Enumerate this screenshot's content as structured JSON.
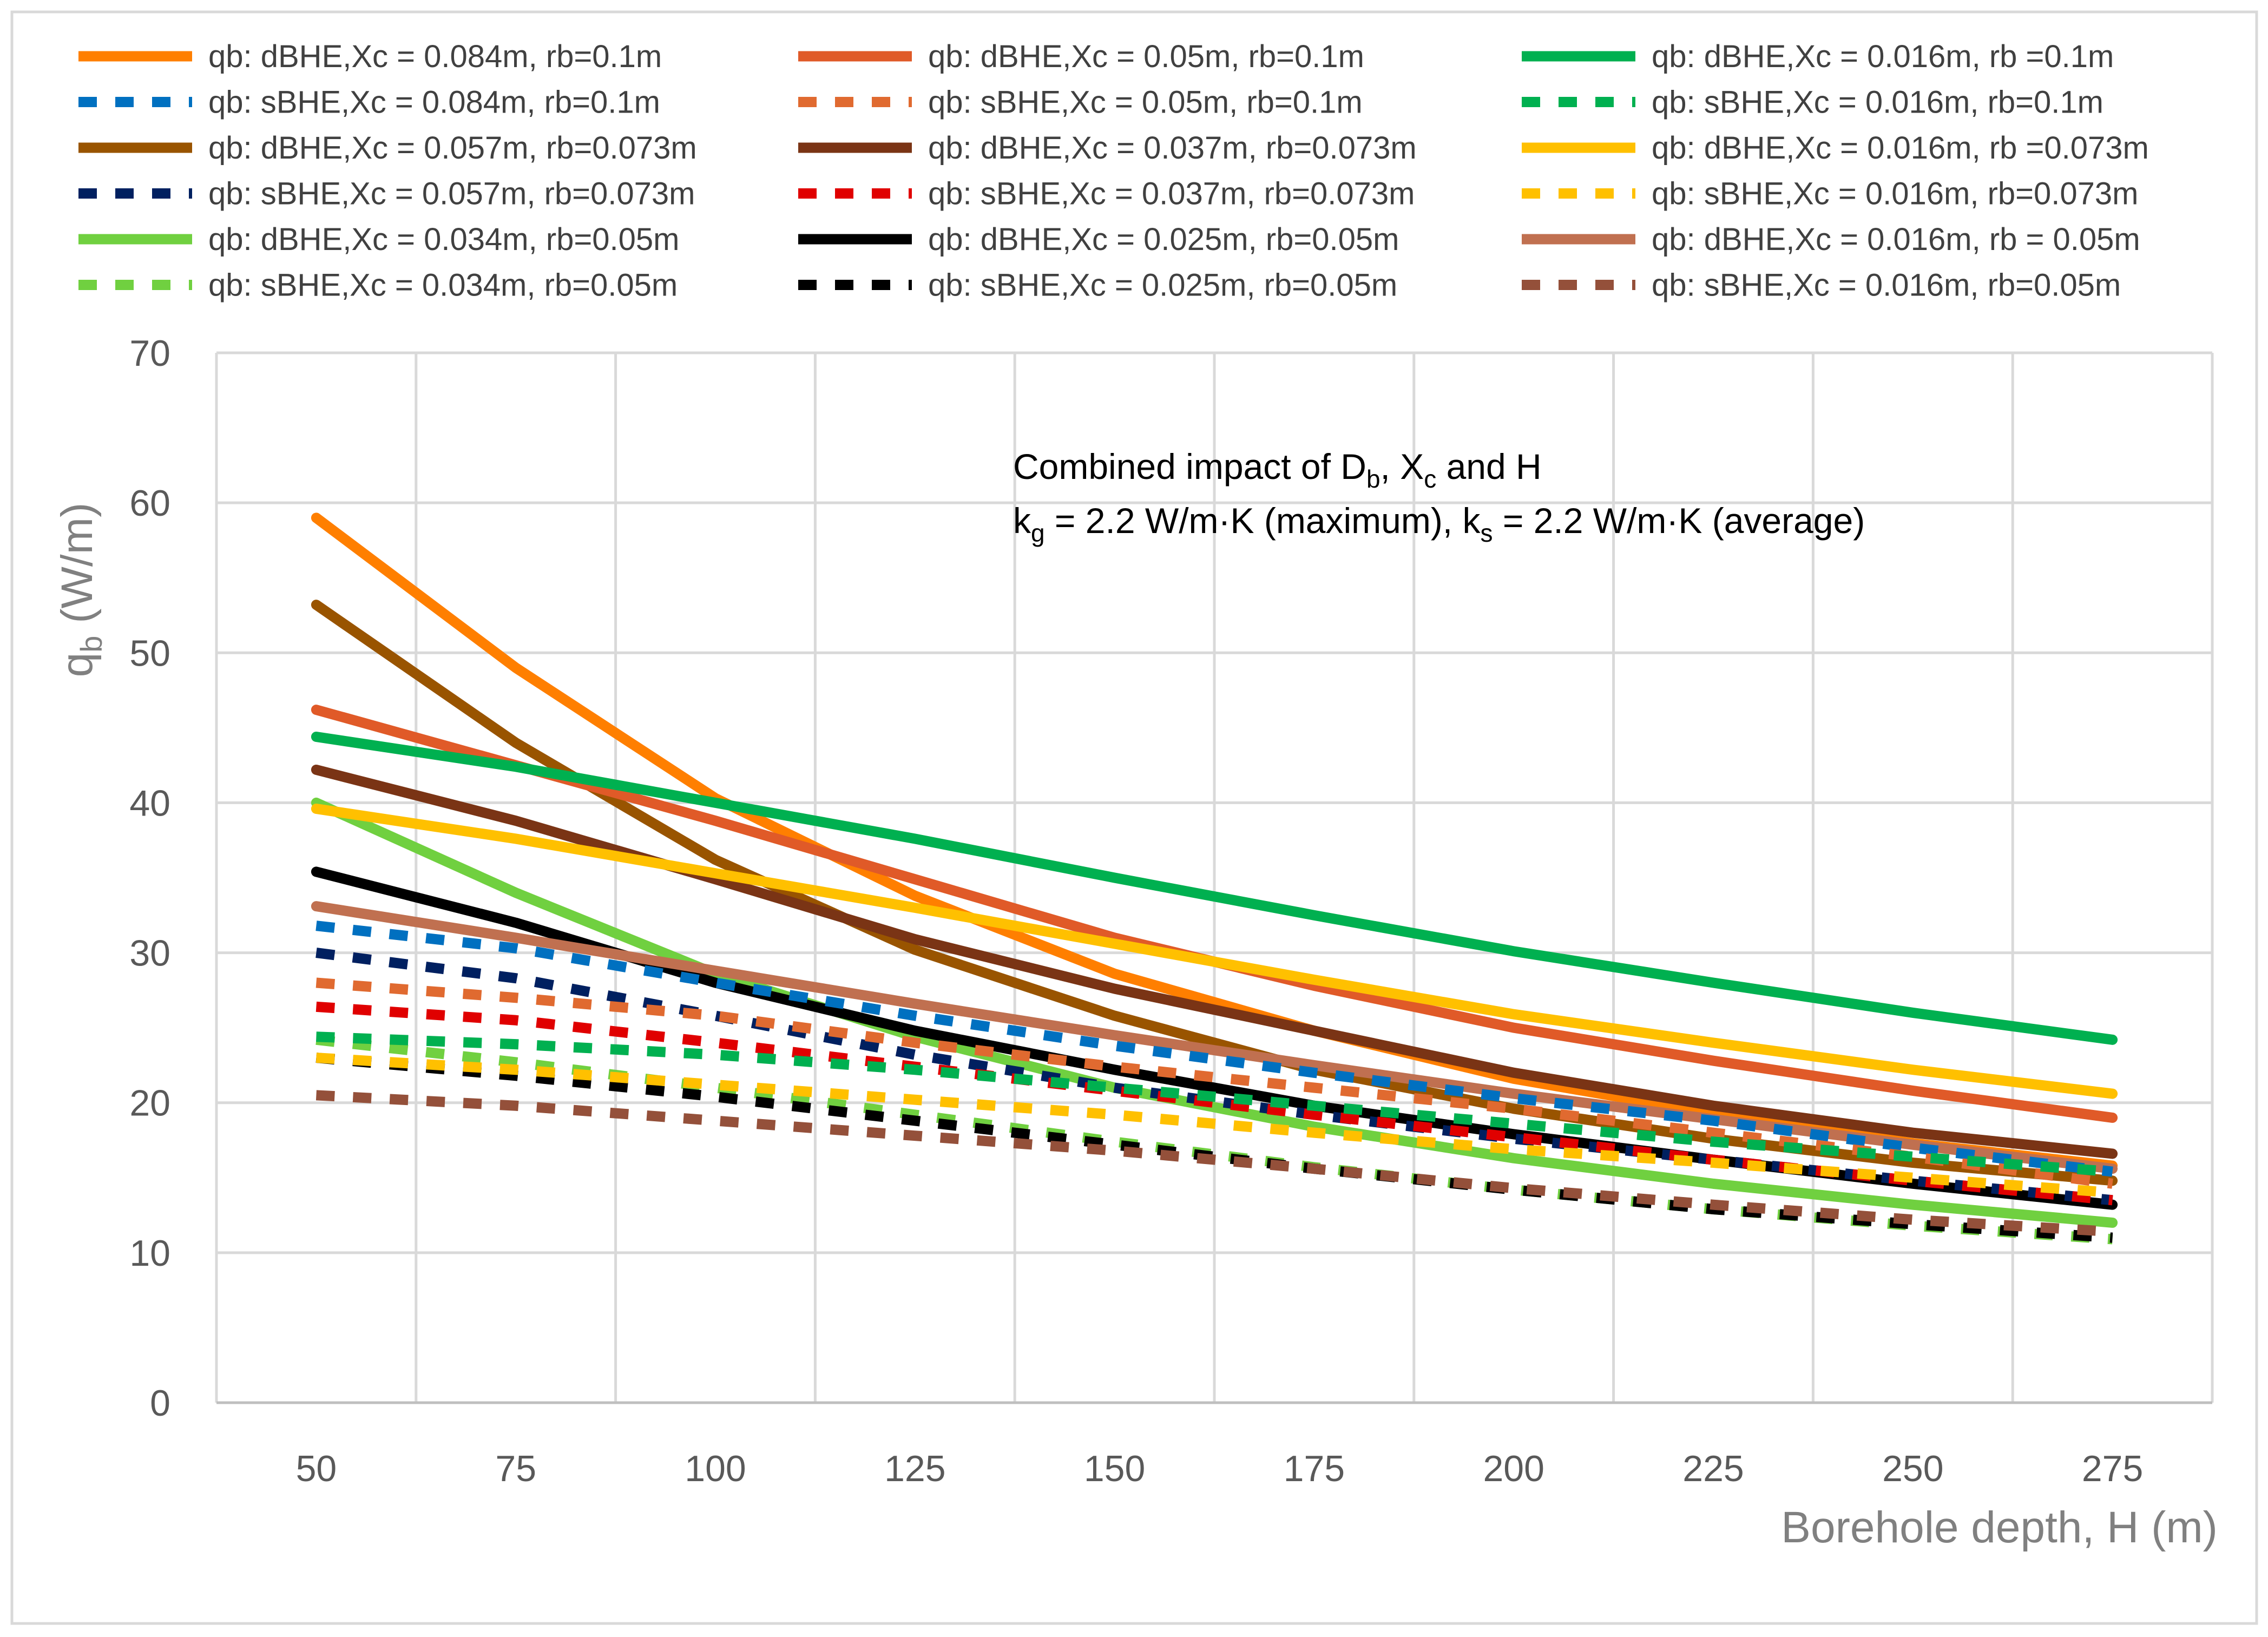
{
  "chart_data": {
    "type": "line",
    "title": "",
    "xlabel": "Borehole depth, H (m)",
    "ylabel_main": "q",
    "ylabel_sub": "b",
    "ylabel_unit": " (W/m)",
    "x": [
      50,
      75,
      100,
      125,
      150,
      175,
      200,
      225,
      250,
      275
    ],
    "xlim": [
      37.5,
      287.5
    ],
    "ylim": [
      0,
      70
    ],
    "yticks": [
      0,
      10,
      20,
      30,
      40,
      50,
      60,
      70
    ],
    "xticks": [
      50,
      75,
      100,
      125,
      150,
      175,
      200,
      225,
      250,
      275
    ],
    "grid": true,
    "legend_position": "top",
    "annotation": {
      "line1_a": "Combined impact of D",
      "line1_b": "b",
      "line1_c": ", X",
      "line1_d": "c",
      "line1_e": "  and H",
      "line2_a": "k",
      "line2_b": "g",
      "line2_c": " = 2.2 W/m·K (maximum), k",
      "line2_d": "s",
      "line2_e": " = 2.2 W/m·K (average)"
    },
    "series": [
      {
        "name": "qb: dBHE,Xc = 0.084m, rb=0.1m",
        "color": "#FF7F00",
        "dashed": false,
        "values": [
          59.0,
          49.0,
          40.3,
          33.8,
          28.6,
          24.8,
          21.6,
          19.3,
          17.3,
          15.8
        ]
      },
      {
        "name": "qb: sBHE,Xc = 0.084m, rb=0.1m",
        "color": "#0070C0",
        "dashed": true,
        "values": [
          31.8,
          30.3,
          28.0,
          25.8,
          23.8,
          22.0,
          20.3,
          18.8,
          17.0,
          15.4
        ]
      },
      {
        "name": "qb: dBHE,Xc = 0.057m, rb=0.073m",
        "color": "#995400",
        "dashed": false,
        "values": [
          53.2,
          44.0,
          36.2,
          30.2,
          25.8,
          22.2,
          19.6,
          17.6,
          16.0,
          14.8
        ]
      },
      {
        "name": "qb: sBHE,Xc = 0.057m, rb=0.073m",
        "color": "#002060",
        "dashed": true,
        "values": [
          30.0,
          28.3,
          25.8,
          23.2,
          21.0,
          19.2,
          17.6,
          16.2,
          14.8,
          13.5
        ]
      },
      {
        "name": "qb: dBHE,Xc = 0.034m, rb=0.05m",
        "color": "#70D040",
        "dashed": false,
        "values": [
          40.0,
          34.0,
          28.6,
          24.4,
          21.0,
          18.4,
          16.3,
          14.6,
          13.2,
          12.0
        ]
      },
      {
        "name": "qb: sBHE,Xc = 0.034m, rb=0.05m",
        "color": "#70D040",
        "dashed": true,
        "values": [
          24.2,
          22.7,
          21.0,
          19.2,
          17.4,
          15.7,
          14.2,
          12.9,
          11.8,
          10.9
        ]
      },
      {
        "name": "qb: dBHE,Xc = 0.05m, rb=0.1m",
        "color": "#E05A28",
        "dashed": false,
        "values": [
          46.2,
          42.5,
          38.8,
          34.9,
          31.0,
          27.8,
          25.0,
          22.8,
          20.8,
          19.0
        ]
      },
      {
        "name": "qb: sBHE,Xc = 0.05m, rb=0.1m",
        "color": "#E06A30",
        "dashed": true,
        "values": [
          28.0,
          27.0,
          25.8,
          24.0,
          22.4,
          21.0,
          19.6,
          18.0,
          16.4,
          14.6
        ]
      },
      {
        "name": "qb: dBHE,Xc = 0.037m, rb=0.073m",
        "color": "#7A3415",
        "dashed": false,
        "values": [
          42.2,
          38.8,
          34.9,
          30.9,
          27.6,
          24.8,
          22.0,
          19.8,
          18.0,
          16.6
        ]
      },
      {
        "name": "qb: sBHE,Xc = 0.037m, rb=0.073m",
        "color": "#E00000",
        "dashed": true,
        "values": [
          26.4,
          25.5,
          24.0,
          22.4,
          20.8,
          19.2,
          17.7,
          16.2,
          14.8,
          13.5
        ]
      },
      {
        "name": "qb: dBHE,Xc = 0.025m, rb=0.05m",
        "color": "#000000",
        "dashed": false,
        "values": [
          35.4,
          32.0,
          28.0,
          24.8,
          22.2,
          19.8,
          17.9,
          16.2,
          14.6,
          13.2
        ]
      },
      {
        "name": "qb: sBHE,Xc = 0.025m, rb=0.05m",
        "color": "#000000",
        "dashed": true,
        "values": [
          23.0,
          21.8,
          20.4,
          18.8,
          17.2,
          15.6,
          14.2,
          12.9,
          11.9,
          11.0
        ]
      },
      {
        "name": "qb: dBHE,Xc = 0.016m, rb =0.1m",
        "color": "#00B050",
        "dashed": false,
        "values": [
          44.4,
          42.4,
          40.0,
          37.6,
          35.0,
          32.5,
          30.1,
          28.0,
          26.0,
          24.2
        ]
      },
      {
        "name": "qb: sBHE,Xc = 0.016m, rb=0.1m",
        "color": "#00B050",
        "dashed": true,
        "values": [
          24.4,
          23.9,
          23.2,
          22.2,
          21.0,
          19.8,
          18.6,
          17.4,
          16.4,
          15.4
        ]
      },
      {
        "name": "qb: dBHE,Xc = 0.016m, rb =0.073m",
        "color": "#FFC000",
        "dashed": false,
        "values": [
          39.6,
          37.6,
          35.3,
          33.0,
          30.6,
          28.2,
          25.9,
          24.0,
          22.2,
          20.6
        ]
      },
      {
        "name": "qb: sBHE,Xc = 0.016m, rb=0.073m",
        "color": "#FFC000",
        "dashed": true,
        "values": [
          23.0,
          22.2,
          21.2,
          20.2,
          19.2,
          18.0,
          16.9,
          16.0,
          15.0,
          14.0
        ]
      },
      {
        "name": "qb: dBHE,Xc = 0.016m, rb = 0.05m",
        "color": "#C07050",
        "dashed": false,
        "values": [
          33.1,
          31.0,
          28.8,
          26.6,
          24.5,
          22.5,
          20.6,
          18.9,
          17.2,
          15.6
        ]
      },
      {
        "name": "qb: sBHE,Xc = 0.016m, rb=0.05m",
        "color": "#94503A",
        "dashed": true,
        "values": [
          20.5,
          19.8,
          18.8,
          17.8,
          16.8,
          15.6,
          14.3,
          13.2,
          12.2,
          11.4
        ]
      }
    ]
  }
}
